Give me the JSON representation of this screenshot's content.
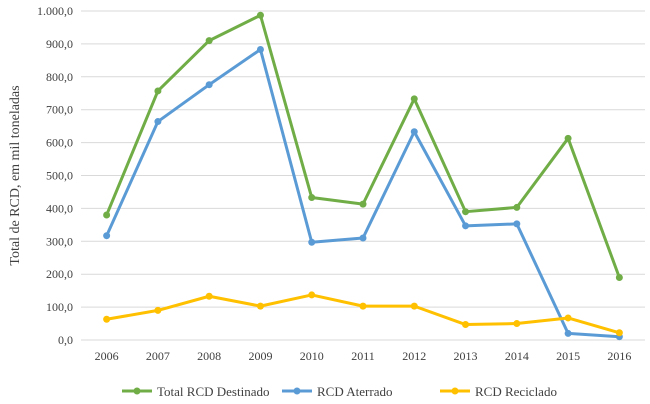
{
  "chart_data": {
    "type": "line",
    "title": "",
    "xlabel": "",
    "ylabel": "Total de RCD, em mil toneladas",
    "categories": [
      "2006",
      "2007",
      "2008",
      "2009",
      "2010",
      "2011",
      "2012",
      "2013",
      "2014",
      "2015",
      "2016"
    ],
    "ylim": [
      0,
      1000
    ],
    "yticks": [
      "0,0",
      "100,0",
      "200,0",
      "300,0",
      "400,0",
      "500,0",
      "600,0",
      "700,0",
      "800,0",
      "900,0",
      "1.000,0"
    ],
    "grid": true,
    "legend_position": "bottom",
    "series": [
      {
        "name": "Total RCD Destinado",
        "color": "#70ad47",
        "values": [
          380,
          757,
          910,
          987,
          433,
          413,
          733,
          390,
          403,
          613,
          190
        ]
      },
      {
        "name": "RCD Aterrado",
        "color": "#5b9bd5",
        "values": [
          317,
          664,
          776,
          883,
          297,
          310,
          633,
          347,
          353,
          20,
          10
        ]
      },
      {
        "name": "RCD Reciclado",
        "color": "#ffc000",
        "values": [
          63,
          90,
          133,
          103,
          137,
          103,
          103,
          47,
          50,
          67,
          22
        ]
      }
    ]
  }
}
